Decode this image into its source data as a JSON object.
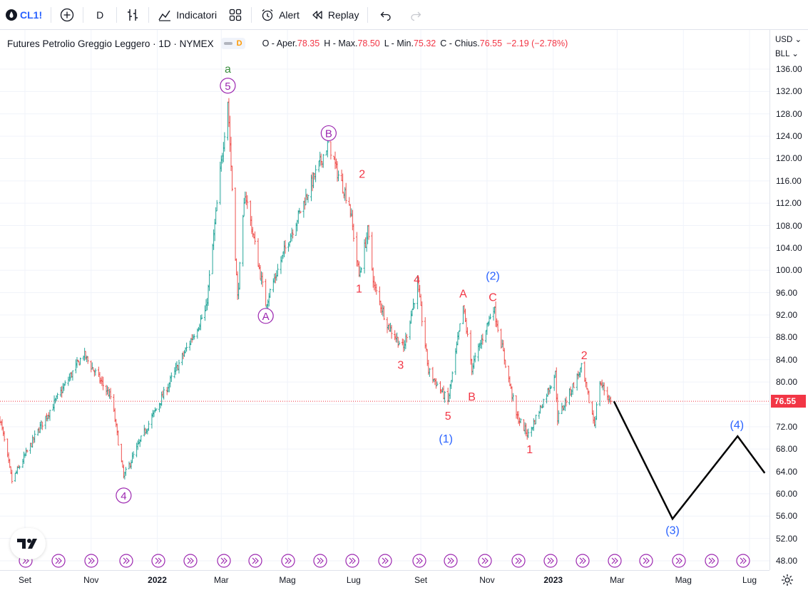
{
  "toolbar": {
    "symbol": "CL1!",
    "interval": "D",
    "indicators_label": "Indicatori",
    "alert_label": "Alert",
    "replay_label": "Replay"
  },
  "legend": {
    "title": "Futures Petrolio Greggio Leggero · 1D · NYMEX",
    "badge": "D",
    "open_label": "O - Aper.",
    "open": "78.35",
    "high_label": "H - Max.",
    "high": "78.50",
    "low_label": "L - Min.",
    "low": "75.32",
    "close_label": "C - Chius.",
    "close": "76.55",
    "change": "−2.19 (−2.78%)"
  },
  "price_axis": {
    "currency": "USD",
    "unit": "BLL",
    "ticks": [
      "136.00",
      "132.00",
      "128.00",
      "124.00",
      "120.00",
      "116.00",
      "112.00",
      "108.00",
      "104.00",
      "100.00",
      "96.00",
      "92.00",
      "88.00",
      "84.00",
      "80.00",
      "76.55",
      "72.00",
      "68.00",
      "64.00",
      "60.00",
      "56.00",
      "52.00",
      "48.00"
    ],
    "last_price": "76.55"
  },
  "time_axis": {
    "labels": [
      {
        "text": "Set",
        "bold": false
      },
      {
        "text": "Nov",
        "bold": false
      },
      {
        "text": "2022",
        "bold": true
      },
      {
        "text": "Mar",
        "bold": false
      },
      {
        "text": "Mag",
        "bold": false
      },
      {
        "text": "Lug",
        "bold": false
      },
      {
        "text": "Set",
        "bold": false
      },
      {
        "text": "Nov",
        "bold": false
      },
      {
        "text": "2023",
        "bold": true
      },
      {
        "text": "Mar",
        "bold": false
      },
      {
        "text": "Mag",
        "bold": false
      },
      {
        "text": "Lug",
        "bold": false
      }
    ]
  },
  "colors": {
    "up": "#26a69a",
    "down": "#ef5350",
    "purple": "#9c27b0",
    "red_label": "#f23645",
    "blue_label": "#2962ff",
    "green_label": "#388e3c",
    "projection": "#000000"
  },
  "chart_data": {
    "type": "ohlc",
    "symbol": "CL1!",
    "interval": "1D",
    "ylim": [
      46,
      139
    ],
    "y_ticks": [
      48,
      52,
      56,
      60,
      64,
      68,
      72,
      76,
      80,
      84,
      88,
      92,
      96,
      100,
      104,
      108,
      112,
      116,
      120,
      124,
      128,
      132,
      136
    ],
    "x_domain": [
      "2021-08-09",
      "2023-07-31"
    ],
    "last_close": 76.55,
    "price_path": [
      {
        "date": "2021-08-09",
        "close": 73.5
      },
      {
        "date": "2021-08-20",
        "close": 62.3
      },
      {
        "date": "2021-09-15",
        "close": 72.0
      },
      {
        "date": "2021-10-25",
        "close": 85.0
      },
      {
        "date": "2021-11-20",
        "close": 77.0
      },
      {
        "date": "2021-12-01",
        "close": 63.0
      },
      {
        "date": "2021-12-20",
        "close": 71.0
      },
      {
        "date": "2022-01-10",
        "close": 79.0
      },
      {
        "date": "2022-02-15",
        "close": 93.0
      },
      {
        "date": "2022-03-07",
        "close": 130.5
      },
      {
        "date": "2022-03-16",
        "close": 95.0
      },
      {
        "date": "2022-03-23",
        "close": 114.0
      },
      {
        "date": "2022-04-11",
        "close": 94.0
      },
      {
        "date": "2022-05-01",
        "close": 105.0
      },
      {
        "date": "2022-06-08",
        "close": 123.0
      },
      {
        "date": "2022-06-15",
        "close": 118.0
      },
      {
        "date": "2022-06-27",
        "close": 112.0
      },
      {
        "date": "2022-07-06",
        "close": 99.0
      },
      {
        "date": "2022-07-14",
        "close": 107.0
      },
      {
        "date": "2022-07-20",
        "close": 97.0
      },
      {
        "date": "2022-08-02",
        "close": 90.0
      },
      {
        "date": "2022-08-16",
        "close": 86.0
      },
      {
        "date": "2022-08-29",
        "close": 97.5
      },
      {
        "date": "2022-09-08",
        "close": 82.0
      },
      {
        "date": "2022-09-26",
        "close": 76.5
      },
      {
        "date": "2022-10-10",
        "close": 93.5
      },
      {
        "date": "2022-10-18",
        "close": 82.5
      },
      {
        "date": "2022-11-07",
        "close": 93.5
      },
      {
        "date": "2022-11-28",
        "close": 74.0
      },
      {
        "date": "2022-12-09",
        "close": 70.5
      },
      {
        "date": "2023-01-03",
        "close": 81.5
      },
      {
        "date": "2023-01-05",
        "close": 73.5
      },
      {
        "date": "2023-01-27",
        "close": 82.5
      },
      {
        "date": "2023-02-08",
        "close": 72.5
      },
      {
        "date": "2023-02-13",
        "close": 80.0
      },
      {
        "date": "2023-02-23",
        "close": 76.55
      }
    ],
    "projection": [
      {
        "date": "2023-02-26",
        "value": 76.55
      },
      {
        "date": "2023-04-21",
        "value": 55.5
      },
      {
        "date": "2023-06-20",
        "value": 70.3
      },
      {
        "date": "2023-07-15",
        "value": 63.7
      }
    ],
    "wave_labels": [
      {
        "text": "a",
        "style": "green",
        "date": "2022-03-07",
        "price": 131.5
      },
      {
        "text": "5",
        "style": "purple-circle",
        "date": "2022-03-07",
        "price": 131.5
      },
      {
        "text": "B",
        "style": "purple-circle",
        "date": "2022-06-08",
        "price": 123.0
      },
      {
        "text": "A",
        "style": "purple-circle",
        "date": "2022-04-11",
        "price": 94.0
      },
      {
        "text": "4",
        "style": "purple-circle",
        "date": "2021-12-01",
        "price": 63.0
      },
      {
        "text": "2",
        "style": "red",
        "date": "2022-06-27",
        "price": 116.0
      },
      {
        "text": "1",
        "style": "red",
        "date": "2022-07-06",
        "price": 99.0
      },
      {
        "text": "4",
        "style": "red",
        "date": "2022-08-29",
        "price": 97.5
      },
      {
        "text": "3",
        "style": "red",
        "date": "2022-08-16",
        "price": 86.0
      },
      {
        "text": "5",
        "style": "red",
        "date": "2022-09-26",
        "price": 76.5
      },
      {
        "text": "A",
        "style": "red",
        "date": "2022-10-10",
        "price": 93.5
      },
      {
        "text": "B",
        "style": "red",
        "date": "2022-10-18",
        "price": 82.5
      },
      {
        "text": "C",
        "style": "red",
        "date": "2022-11-07",
        "price": 93.5
      },
      {
        "text": "(2)",
        "style": "blue",
        "date": "2022-11-07",
        "price": 93.5
      },
      {
        "text": "(1)",
        "style": "blue",
        "date": "2022-09-26",
        "price": 76.5
      },
      {
        "text": "1",
        "style": "red",
        "date": "2022-12-09",
        "price": 70.5
      },
      {
        "text": "2",
        "style": "red",
        "date": "2023-01-27",
        "price": 82.5
      },
      {
        "text": "(3)",
        "style": "blue",
        "date": "2023-04-21",
        "price": 55.5
      },
      {
        "text": "(4)",
        "style": "blue",
        "date": "2023-06-20",
        "price": 70.3
      }
    ]
  }
}
